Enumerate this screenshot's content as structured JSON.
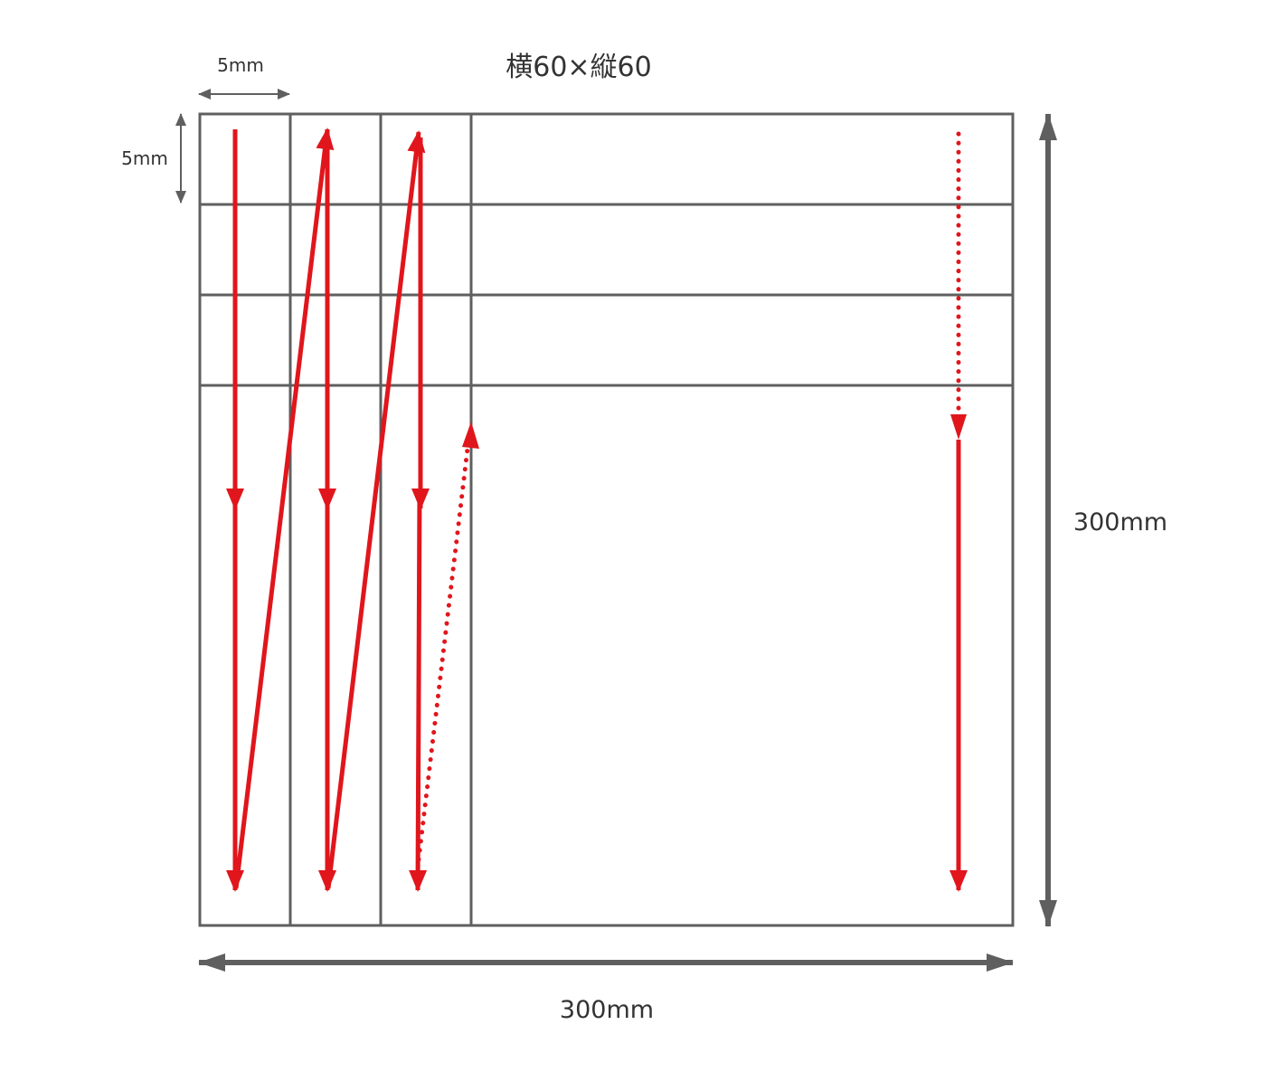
{
  "title": "横60×縦60",
  "dimensions": {
    "cell_width": "5mm",
    "cell_height": "5mm",
    "total_width": "300mm",
    "total_height": "300mm"
  },
  "colors": {
    "grid": "#5f5f5f",
    "scan_path": "#e0161c",
    "text": "#333333"
  }
}
